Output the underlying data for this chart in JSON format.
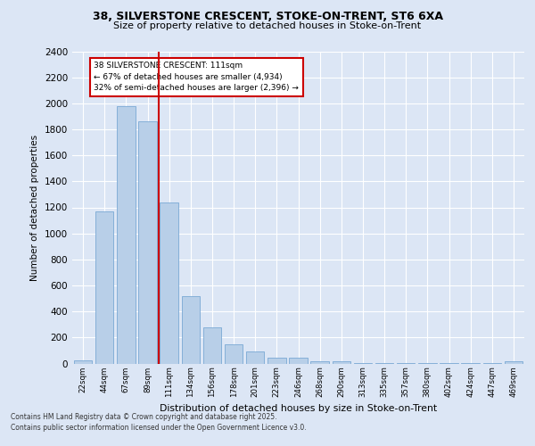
{
  "title_line1": "38, SILVERSTONE CRESCENT, STOKE-ON-TRENT, ST6 6XA",
  "title_line2": "Size of property relative to detached houses in Stoke-on-Trent",
  "xlabel": "Distribution of detached houses by size in Stoke-on-Trent",
  "ylabel": "Number of detached properties",
  "bar_labels": [
    "22sqm",
    "44sqm",
    "67sqm",
    "89sqm",
    "111sqm",
    "134sqm",
    "156sqm",
    "178sqm",
    "201sqm",
    "223sqm",
    "246sqm",
    "268sqm",
    "290sqm",
    "313sqm",
    "335sqm",
    "357sqm",
    "380sqm",
    "402sqm",
    "424sqm",
    "447sqm",
    "469sqm"
  ],
  "bar_values": [
    25,
    1170,
    1980,
    1860,
    1240,
    520,
    275,
    150,
    90,
    45,
    45,
    20,
    15,
    5,
    5,
    5,
    5,
    2,
    2,
    2,
    15
  ],
  "bar_color": "#b8cfe8",
  "bar_edge_color": "#7aa8d4",
  "vline_color": "#cc0000",
  "annotation_title": "38 SILVERSTONE CRESCENT: 111sqm",
  "annotation_line1": "← 67% of detached houses are smaller (4,934)",
  "annotation_line2": "32% of semi-detached houses are larger (2,396) →",
  "annotation_box_facecolor": "#ffffff",
  "annotation_box_edgecolor": "#cc0000",
  "ylim": [
    0,
    2400
  ],
  "yticks": [
    0,
    200,
    400,
    600,
    800,
    1000,
    1200,
    1400,
    1600,
    1800,
    2000,
    2200,
    2400
  ],
  "background_color": "#dce6f5",
  "grid_color": "#ffffff",
  "footer_line1": "Contains HM Land Registry data © Crown copyright and database right 2025.",
  "footer_line2": "Contains public sector information licensed under the Open Government Licence v3.0."
}
